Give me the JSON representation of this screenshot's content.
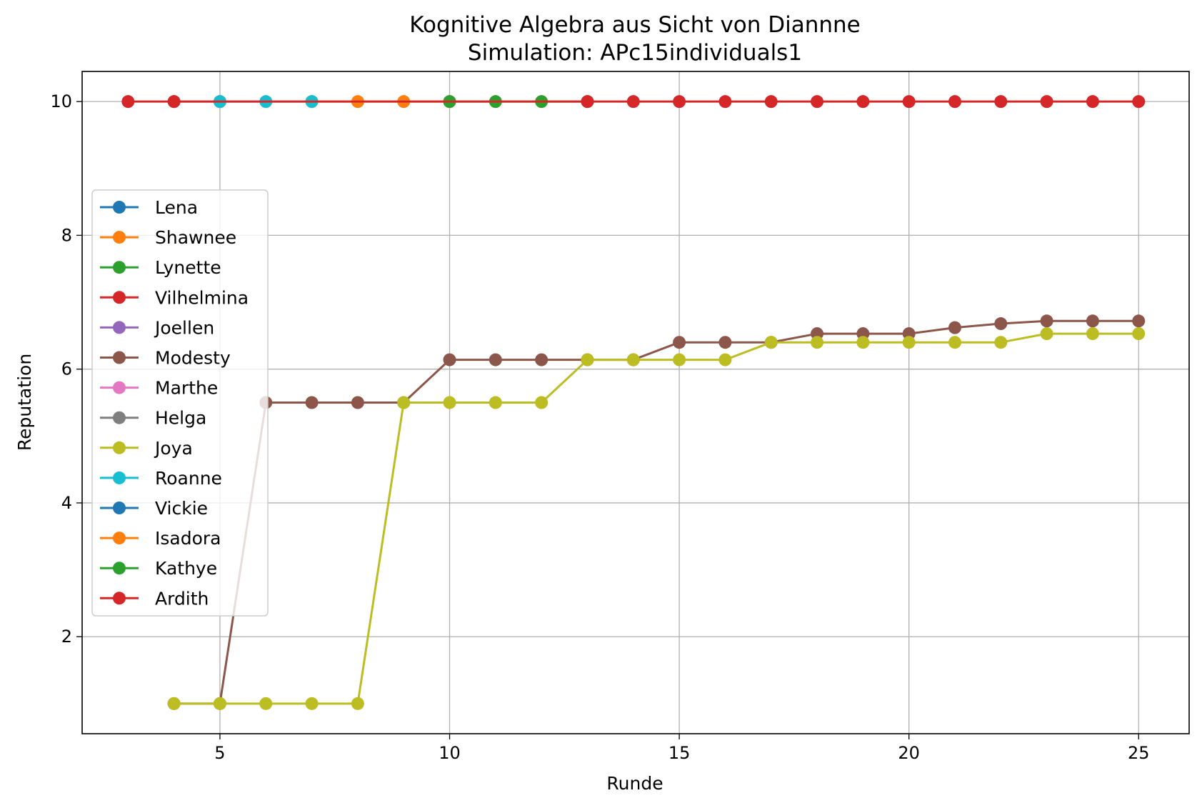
{
  "chart_data": {
    "type": "line",
    "title": "Kognitive Algebra aus Sicht von Diannne",
    "subtitle": "Simulation: APc15individuals1",
    "xlabel": "Runde",
    "ylabel": "Reputation",
    "xlim": [
      2,
      26.1
    ],
    "ylim": [
      0.55,
      10.45
    ],
    "xticks": [
      5,
      10,
      15,
      20,
      25
    ],
    "yticks": [
      2,
      4,
      6,
      8,
      10
    ],
    "grid": true,
    "legend_position": "center-left",
    "series": [
      {
        "name": "Lena",
        "color": "#1f77b4",
        "x": [],
        "y": []
      },
      {
        "name": "Shawnee",
        "color": "#ff7f0e",
        "x": [
          7,
          8,
          9,
          10
        ],
        "y": [
          10,
          10,
          10,
          10
        ]
      },
      {
        "name": "Lynette",
        "color": "#2ca02c",
        "x": [],
        "y": []
      },
      {
        "name": "Vilhelmina",
        "color": "#d62728",
        "x": [],
        "y": []
      },
      {
        "name": "Joellen",
        "color": "#9467bd",
        "x": [],
        "y": []
      },
      {
        "name": "Modesty",
        "color": "#8c564b",
        "x": [
          4,
          5,
          6,
          7,
          8,
          9,
          10,
          11,
          12,
          13,
          14,
          15,
          16,
          17,
          18,
          19,
          20,
          21,
          22,
          23,
          24,
          25
        ],
        "y": [
          1,
          1,
          5.5,
          5.5,
          5.5,
          5.5,
          6.14,
          6.14,
          6.14,
          6.14,
          6.14,
          6.4,
          6.4,
          6.4,
          6.53,
          6.53,
          6.53,
          6.62,
          6.68,
          6.72,
          6.72,
          6.72
        ]
      },
      {
        "name": "Marthe",
        "color": "#e377c2",
        "x": [],
        "y": []
      },
      {
        "name": "Helga",
        "color": "#7f7f7f",
        "x": [
          4,
          5
        ],
        "y": [
          10,
          10
        ]
      },
      {
        "name": "Joya",
        "color": "#bcbd22",
        "x": [
          4,
          5,
          6,
          7,
          8,
          9,
          10,
          11,
          12,
          13,
          14,
          15,
          16,
          17,
          18,
          19,
          20,
          21,
          22,
          23,
          24,
          25
        ],
        "y": [
          1,
          1,
          1,
          1,
          1,
          5.5,
          5.5,
          5.5,
          5.5,
          6.14,
          6.14,
          6.14,
          6.14,
          6.4,
          6.4,
          6.4,
          6.4,
          6.4,
          6.4,
          6.53,
          6.53,
          6.53
        ]
      },
      {
        "name": "Roanne",
        "color": "#17becf",
        "x": [
          5,
          6,
          7
        ],
        "y": [
          10,
          10,
          10
        ]
      },
      {
        "name": "Vickie",
        "color": "#1f77b4",
        "x": [],
        "y": []
      },
      {
        "name": "Isadora",
        "color": "#ff7f0e",
        "x": [],
        "y": []
      },
      {
        "name": "Kathye",
        "color": "#2ca02c",
        "x": [
          10,
          11,
          12,
          13
        ],
        "y": [
          10,
          10,
          10,
          10
        ]
      },
      {
        "name": "Ardith",
        "color": "#d62728",
        "x": [
          3,
          4,
          13,
          14,
          15,
          16,
          17,
          18,
          19,
          20,
          21,
          22,
          23,
          24,
          25
        ],
        "y": [
          10,
          10,
          10,
          10,
          10,
          10,
          10,
          10,
          10,
          10,
          10,
          10,
          10,
          10,
          10
        ]
      }
    ]
  }
}
